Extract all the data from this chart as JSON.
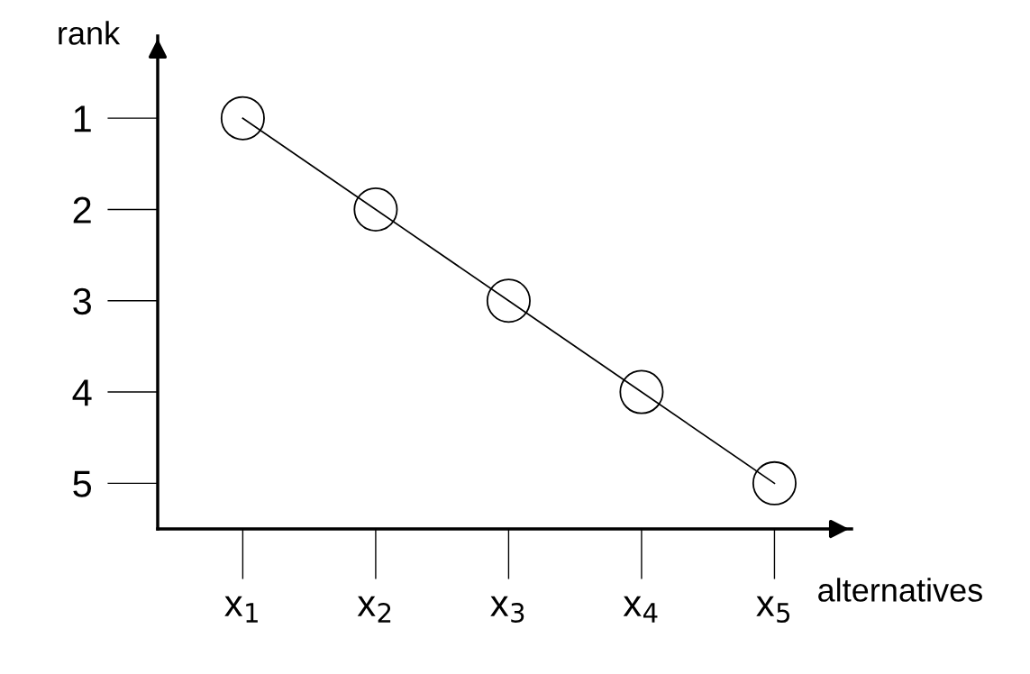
{
  "chart_data": {
    "type": "line",
    "xlabel": "alternatives",
    "ylabel": "rank",
    "categories": [
      "x$_{1}$",
      "x$_{2}$",
      "x$_{3}$",
      "x$_{4}$",
      "x$_{5}$"
    ],
    "series": [
      {
        "color": "#000000",
        "marker": "none",
        "values": [
          1,
          2,
          3,
          4,
          5
        ]
      },
      {
        "type": "scatter",
        "color": "#ffffff",
        "marker": "circle",
        "values": [
          1,
          2,
          3,
          4,
          5
        ]
      }
    ],
    "ylim": [
      5.5,
      0.1
    ],
    "yticks": [
      1,
      2,
      3,
      4,
      5
    ],
    "line_style": "solid",
    "grid": false,
    "legend": false
  }
}
